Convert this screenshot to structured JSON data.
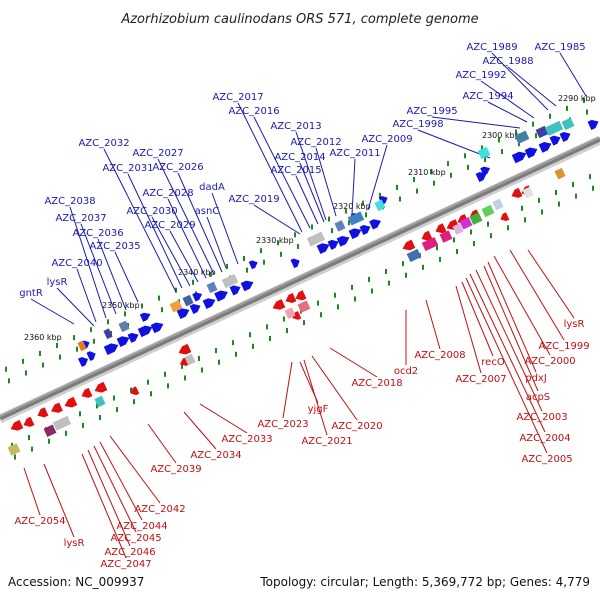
{
  "title": "Azorhizobium caulinodans ORS 571, complete genome",
  "footer": {
    "accession": "Accession: NC_009937",
    "topology": "Topology: circular; Length: 5,369,772 bp; Genes: 4,779"
  },
  "colors": {
    "forward_gene": "#1010e0",
    "reverse_gene": "#e01010",
    "forward_label": "#1a1ab0",
    "reverse_label": "#c01010",
    "backbone": "#8a8a8a",
    "tick": "#1a8a1a"
  },
  "kbp_ticks": [
    "2360 kbp",
    "2350 kbp",
    "2340 kbp",
    "2330 kbp",
    "2320 kbp",
    "2310 kbp",
    "2300 kbp",
    "2290 kbp"
  ],
  "forward_genes": [
    "AZC_1985",
    "AZC_1988",
    "AZC_1989",
    "AZC_1992",
    "AZC_1994",
    "AZC_1995",
    "AZC_1998",
    "AZC_2009",
    "AZC_2011",
    "AZC_2012",
    "AZC_2013",
    "AZC_2014",
    "AZC_2015",
    "AZC_2016",
    "AZC_2017",
    "AZC_2019",
    "dadA",
    "asnC",
    "AZC_2026",
    "AZC_2027",
    "AZC_2028",
    "AZC_2029",
    "AZC_2030",
    "AZC_2031",
    "AZC_2032",
    "AZC_2035",
    "AZC_2036",
    "AZC_2037",
    "AZC_2038",
    "AZC_2040",
    "lysR",
    "gntR"
  ],
  "reverse_genes": [
    "lysR",
    "AZC_1999",
    "AZC_2000",
    "pdxJ",
    "acpS",
    "AZC_2003",
    "AZC_2004",
    "AZC_2005",
    "recO",
    "AZC_2007",
    "AZC_2008",
    "ocd2",
    "AZC_2018",
    "AZC_2020",
    "AZC_2021",
    "yjgF",
    "AZC_2023",
    "AZC_2033",
    "AZC_2034",
    "AZC_2039",
    "AZC_2042",
    "AZC_2044",
    "AZC_2045",
    "AZC_2046",
    "AZC_2047",
    "lysR",
    "AZC_2054"
  ]
}
